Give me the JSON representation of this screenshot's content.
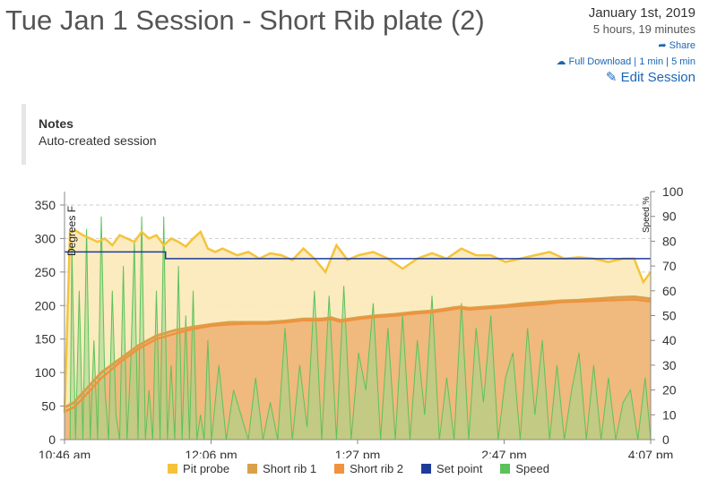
{
  "header": {
    "title": "Tue Jan 1 Session - Short Rib plate (2)",
    "date": "January 1st, 2019",
    "duration": "5 hours, 19 minutes",
    "share_label": "Share",
    "download_label": "Full Download",
    "one_min_label": "1 min",
    "five_min_label": "5 min",
    "edit_label": "Edit Session"
  },
  "notes": {
    "heading": "Notes",
    "text": "Auto-created session"
  },
  "chart_data": {
    "type": "line",
    "x_ticks": [
      "10:46 am",
      "12:06 pm",
      "1:27 pm",
      "2:47 pm",
      "4:07 pm"
    ],
    "x_range": [
      0,
      319
    ],
    "ylabel_left": "Degrees F",
    "ylabel_right": "Speed %",
    "y_left_ticks": [
      0,
      50,
      100,
      150,
      200,
      250,
      300,
      350
    ],
    "y_left_range": [
      0,
      370
    ],
    "y_right_ticks": [
      0,
      10,
      20,
      30,
      40,
      50,
      60,
      70,
      80,
      90,
      100
    ],
    "y_right_range": [
      0,
      100
    ],
    "grid": true,
    "legend_position": "bottom",
    "series": [
      {
        "name": "Pit probe",
        "color": "#f5c33b",
        "axis": "left",
        "x": [
          0,
          3,
          6,
          10,
          14,
          18,
          22,
          26,
          30,
          34,
          38,
          42,
          46,
          50,
          54,
          58,
          62,
          66,
          70,
          74,
          78,
          82,
          86,
          90,
          94,
          100,
          106,
          112,
          118,
          124,
          130,
          136,
          142,
          148,
          154,
          160,
          168,
          176,
          184,
          192,
          200,
          208,
          216,
          224,
          232,
          240,
          248,
          256,
          264,
          272,
          280,
          288,
          296,
          304,
          310,
          315,
          319
        ],
        "values": [
          40,
          310,
          312,
          305,
          300,
          295,
          300,
          290,
          305,
          300,
          295,
          310,
          300,
          305,
          290,
          300,
          295,
          288,
          300,
          310,
          285,
          280,
          285,
          280,
          275,
          280,
          270,
          278,
          275,
          268,
          285,
          270,
          250,
          290,
          268,
          275,
          280,
          270,
          255,
          270,
          278,
          270,
          285,
          275,
          275,
          265,
          270,
          275,
          280,
          270,
          272,
          270,
          265,
          270,
          270,
          235,
          250
        ]
      },
      {
        "name": "Short rib 1",
        "color": "#d9a04a",
        "axis": "left",
        "x": [
          0,
          5,
          10,
          20,
          30,
          40,
          50,
          60,
          70,
          80,
          90,
          100,
          110,
          120,
          130,
          140,
          145,
          150,
          160,
          170,
          180,
          190,
          200,
          210,
          215,
          220,
          230,
          240,
          250,
          260,
          270,
          280,
          290,
          300,
          310,
          319
        ],
        "values": [
          48,
          55,
          70,
          100,
          120,
          140,
          155,
          163,
          168,
          172,
          175,
          175,
          175,
          177,
          180,
          180,
          182,
          178,
          182,
          185,
          187,
          190,
          192,
          196,
          198,
          196,
          198,
          200,
          203,
          205,
          207,
          208,
          210,
          212,
          213,
          210
        ]
      },
      {
        "name": "Short rib 2",
        "color": "#f0923e",
        "axis": "left",
        "x": [
          0,
          5,
          10,
          20,
          30,
          40,
          50,
          60,
          70,
          80,
          90,
          100,
          110,
          120,
          130,
          140,
          145,
          150,
          160,
          170,
          180,
          190,
          200,
          210,
          215,
          220,
          230,
          240,
          250,
          260,
          270,
          280,
          290,
          300,
          310,
          319
        ],
        "values": [
          42,
          48,
          62,
          92,
          115,
          135,
          150,
          158,
          165,
          170,
          172,
          173,
          173,
          175,
          178,
          178,
          180,
          176,
          180,
          183,
          185,
          188,
          190,
          194,
          196,
          194,
          196,
          198,
          200,
          202,
          205,
          206,
          207,
          208,
          209,
          206
        ]
      },
      {
        "name": "Set point",
        "color": "#1f3b9a",
        "axis": "left",
        "x": [
          0,
          55,
          55,
          319
        ],
        "values": [
          280,
          280,
          270,
          270
        ]
      },
      {
        "name": "Speed",
        "color": "#5cc25a",
        "axis": "right",
        "x": [
          0,
          3,
          4,
          6,
          8,
          10,
          12,
          14,
          16,
          18,
          20,
          22,
          24,
          26,
          28,
          30,
          32,
          34,
          36,
          38,
          40,
          42,
          44,
          46,
          48,
          50,
          52,
          54,
          56,
          58,
          60,
          62,
          64,
          66,
          68,
          70,
          72,
          74,
          76,
          78,
          80,
          84,
          88,
          92,
          96,
          100,
          104,
          108,
          112,
          116,
          120,
          124,
          128,
          132,
          136,
          140,
          144,
          148,
          152,
          156,
          160,
          164,
          168,
          172,
          176,
          180,
          184,
          188,
          192,
          196,
          200,
          204,
          208,
          212,
          216,
          220,
          224,
          228,
          232,
          236,
          240,
          244,
          248,
          252,
          256,
          260,
          264,
          268,
          272,
          276,
          280,
          284,
          288,
          292,
          296,
          300,
          304,
          308,
          312,
          316,
          319
        ],
        "values": [
          0,
          0,
          78,
          0,
          60,
          0,
          85,
          0,
          40,
          0,
          90,
          20,
          0,
          60,
          10,
          0,
          70,
          0,
          30,
          80,
          0,
          90,
          0,
          20,
          0,
          60,
          0,
          90,
          0,
          30,
          0,
          70,
          0,
          50,
          0,
          60,
          0,
          10,
          0,
          40,
          0,
          30,
          0,
          20,
          10,
          0,
          25,
          0,
          15,
          0,
          45,
          0,
          30,
          5,
          60,
          0,
          58,
          0,
          62,
          0,
          35,
          20,
          55,
          0,
          45,
          0,
          50,
          0,
          40,
          10,
          58,
          0,
          25,
          0,
          55,
          0,
          45,
          15,
          50,
          0,
          25,
          35,
          0,
          45,
          10,
          40,
          0,
          30,
          0,
          20,
          35,
          0,
          30,
          0,
          25,
          0,
          15,
          20,
          0,
          25,
          0
        ]
      }
    ]
  }
}
